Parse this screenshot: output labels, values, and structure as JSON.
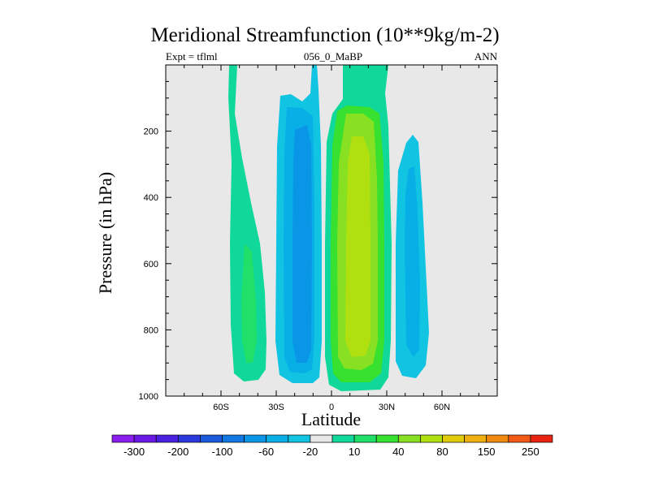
{
  "chart_data": {
    "type": "contour",
    "title": "Meridional Streamfunction (10**9kg/m-2)",
    "left_label": "Expt = tflml",
    "center_label": "056_0_MaBP",
    "right_label": "ANN",
    "xlabel": "Latitude",
    "ylabel": "Pressure (in hPa)",
    "xlim": [
      -90,
      90
    ],
    "ylim": [
      1000,
      0
    ],
    "x_ticks": [
      {
        "value": -60,
        "label": "60S"
      },
      {
        "value": -30,
        "label": "30S"
      },
      {
        "value": 0,
        "label": "0"
      },
      {
        "value": 30,
        "label": "30N"
      },
      {
        "value": 60,
        "label": "60N"
      }
    ],
    "y_ticks": [
      {
        "value": 200,
        "label": "200"
      },
      {
        "value": 400,
        "label": "400"
      },
      {
        "value": 600,
        "label": "600"
      },
      {
        "value": 800,
        "label": "800"
      },
      {
        "value": 1000,
        "label": "1000"
      }
    ],
    "colorbar_labels": [
      "-300",
      "-200",
      "-100",
      "-60",
      "-20",
      "10",
      "40",
      "80",
      "150",
      "250"
    ],
    "colorbar_colors": [
      "#8a1df0",
      "#6a18e6",
      "#4a20e0",
      "#2a38dc",
      "#1a58dc",
      "#1078e0",
      "#0a96e6",
      "#08aee6",
      "#10c4e2",
      "#e8e8e8",
      "#10d89a",
      "#20e06a",
      "#38e030",
      "#88e022",
      "#b0e010",
      "#e0cc08",
      "#f0b010",
      "#f08a10",
      "#f05a14",
      "#e82410"
    ],
    "background_color": "#e8e8e8"
  }
}
